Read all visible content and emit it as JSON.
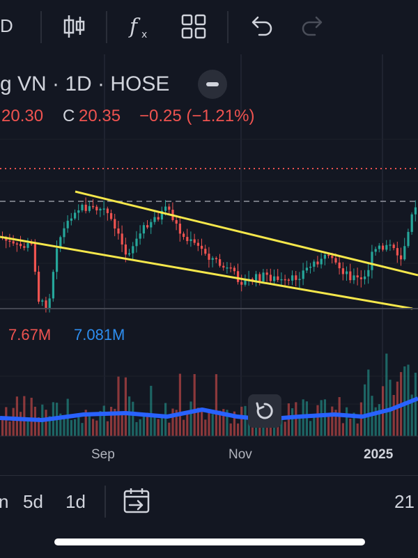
{
  "toolbar": {
    "interval_label": "D",
    "icons": [
      "candlestick-icon",
      "indicators-icon",
      "layout-grid-icon",
      "undo-icon",
      "redo-icon"
    ]
  },
  "legend": {
    "symbol_title": "g VN · 1D · HOSE",
    "low_value": "20.30",
    "close_label": "C",
    "close_value": "20.35",
    "change": "−0.25 (−1.21%)"
  },
  "volume": {
    "vol_value": "7.67M",
    "vol_ma": "7.081M"
  },
  "xaxis": {
    "ticks": [
      "Sep",
      "Nov",
      "2025"
    ]
  },
  "bottombar": {
    "range_partial": "n",
    "range_5d": "5d",
    "range_1d": "1d",
    "time_partial": "21"
  },
  "colors": {
    "background": "#131722",
    "up": "#26a69a",
    "down": "#ef5350",
    "trendline": "#f5e74b",
    "volume_ma": "#2962ff",
    "text": "#d1d4dc"
  },
  "chart_data": {
    "type": "candlestick",
    "symbol": "g VN",
    "interval": "1D",
    "exchange": "HOSE",
    "x_ticks": [
      "Sep",
      "Nov",
      "2025"
    ],
    "last_close": 20.35,
    "change": -0.25,
    "change_pct": -1.21,
    "volume": "7.67M",
    "volume_ma": "7.081M",
    "overlays": [
      "two converging trendlines",
      "dashed horizontal level",
      "dotted horizontal level"
    ]
  }
}
